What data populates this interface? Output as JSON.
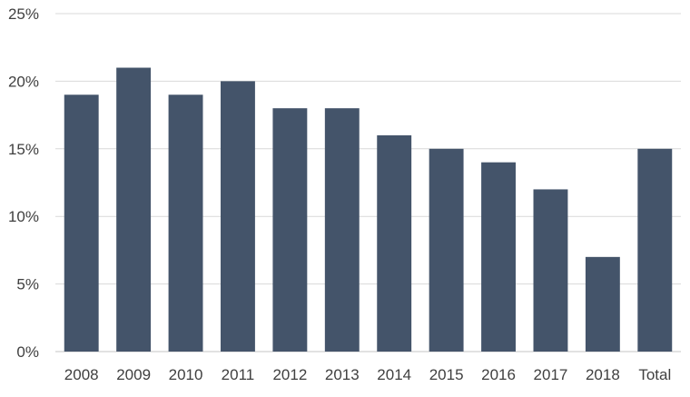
{
  "chart_data": {
    "type": "bar",
    "categories": [
      "2008",
      "2009",
      "2010",
      "2011",
      "2012",
      "2013",
      "2014",
      "2015",
      "2016",
      "2017",
      "2018",
      "Total"
    ],
    "values": [
      19,
      21,
      19,
      20,
      18,
      18,
      16,
      15,
      14,
      12,
      7,
      15
    ],
    "value_unit": "%",
    "title": "",
    "xlabel": "",
    "ylabel": "",
    "ylim": [
      0,
      25
    ],
    "y_ticks": [
      "0%",
      "5%",
      "10%",
      "15%",
      "20%",
      "25%"
    ],
    "grid": true,
    "legend": "none",
    "bar_color": "#44546a",
    "grid_color": "#d9d9d9"
  }
}
